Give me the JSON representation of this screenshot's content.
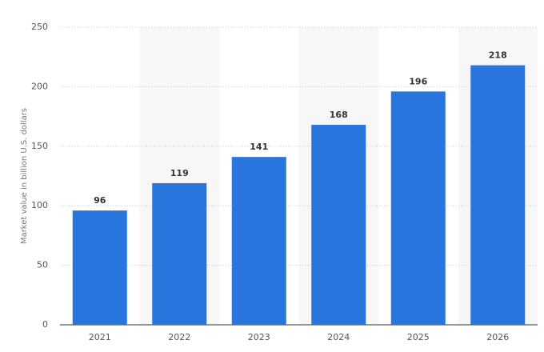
{
  "chart_data": {
    "type": "bar",
    "y_label": "Market value in billion U.S. dollars",
    "categories": [
      "2021",
      "2022",
      "2023",
      "2024",
      "2025",
      "2026"
    ],
    "values": [
      96,
      119,
      141,
      168,
      196,
      218
    ],
    "color": "#2876dd",
    "ylim": [
      0,
      250
    ],
    "yticks": [
      0,
      50,
      100,
      150,
      200,
      250
    ],
    "grid": true
  }
}
